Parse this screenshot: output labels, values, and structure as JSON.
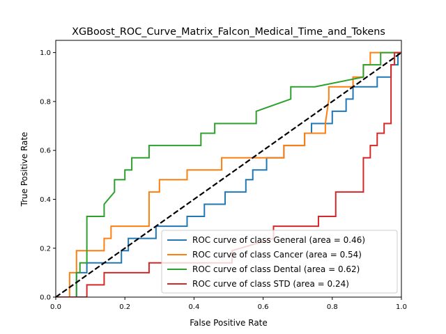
{
  "chart_data": {
    "type": "line",
    "title": "XGBoost_ROC_Curve_Matrix_Falcon_Medical_Time_and_Tokens",
    "xlabel": "False Positive Rate",
    "ylabel": "True Positive Rate",
    "xlim": [
      0.0,
      1.0
    ],
    "ylim": [
      0.0,
      1.05
    ],
    "xticks": [
      "0.0",
      "0.2",
      "0.4",
      "0.6",
      "0.8",
      "1.0"
    ],
    "yticks": [
      "0.0",
      "0.2",
      "0.4",
      "0.6",
      "0.8",
      "1.0"
    ],
    "grid": false,
    "legend_position": "lower-right",
    "series": [
      {
        "name": "ROC curve of class General (area = 0.46)",
        "color": "#1f77b4",
        "x": [
          0.0,
          0.0,
          0.06,
          0.06,
          0.09,
          0.09,
          0.19,
          0.19,
          0.21,
          0.21,
          0.29,
          0.29,
          0.38,
          0.38,
          0.43,
          0.43,
          0.49,
          0.49,
          0.55,
          0.55,
          0.57,
          0.57,
          0.61,
          0.61,
          0.66,
          0.66,
          0.72,
          0.72,
          0.74,
          0.74,
          0.8,
          0.8,
          0.84,
          0.84,
          0.86,
          0.86,
          0.93,
          0.93,
          0.97,
          0.97,
          0.99,
          0.99,
          1.0
        ],
        "y": [
          0.0,
          0.0,
          0.0,
          0.1,
          0.1,
          0.14,
          0.14,
          0.19,
          0.19,
          0.24,
          0.24,
          0.29,
          0.29,
          0.33,
          0.33,
          0.38,
          0.38,
          0.43,
          0.43,
          0.48,
          0.48,
          0.52,
          0.52,
          0.57,
          0.57,
          0.62,
          0.62,
          0.67,
          0.67,
          0.71,
          0.71,
          0.76,
          0.76,
          0.81,
          0.81,
          0.86,
          0.86,
          0.9,
          0.9,
          0.95,
          0.95,
          1.0,
          1.0
        ]
      },
      {
        "name": "ROC curve of class Cancer (area = 0.54)",
        "color": "#ff7f0e",
        "x": [
          0.0,
          0.04,
          0.04,
          0.06,
          0.06,
          0.14,
          0.14,
          0.16,
          0.16,
          0.27,
          0.27,
          0.3,
          0.3,
          0.38,
          0.38,
          0.48,
          0.48,
          0.66,
          0.66,
          0.72,
          0.72,
          0.78,
          0.78,
          0.79,
          0.79,
          0.86,
          0.86,
          0.89,
          0.89,
          0.91,
          0.91,
          0.99,
          0.99,
          1.0
        ],
        "y": [
          0.0,
          0.0,
          0.1,
          0.1,
          0.19,
          0.19,
          0.24,
          0.24,
          0.29,
          0.29,
          0.43,
          0.43,
          0.48,
          0.48,
          0.52,
          0.52,
          0.57,
          0.57,
          0.62,
          0.62,
          0.67,
          0.67,
          0.71,
          0.81,
          0.86,
          0.86,
          0.9,
          0.9,
          0.95,
          0.95,
          1.0,
          1.0,
          1.0,
          1.0
        ]
      },
      {
        "name": "ROC curve of class Dental (area = 0.62)",
        "color": "#2ca02c",
        "x": [
          0.0,
          0.06,
          0.06,
          0.07,
          0.07,
          0.09,
          0.09,
          0.14,
          0.14,
          0.17,
          0.17,
          0.2,
          0.2,
          0.22,
          0.22,
          0.27,
          0.27,
          0.42,
          0.42,
          0.46,
          0.46,
          0.58,
          0.58,
          0.68,
          0.68,
          0.75,
          0.75,
          0.89,
          0.89,
          0.94,
          0.94,
          0.97,
          0.97,
          1.0
        ],
        "y": [
          0.0,
          0.0,
          0.1,
          0.1,
          0.14,
          0.14,
          0.33,
          0.33,
          0.38,
          0.43,
          0.48,
          0.48,
          0.52,
          0.52,
          0.57,
          0.57,
          0.62,
          0.62,
          0.67,
          0.67,
          0.71,
          0.71,
          0.76,
          0.81,
          0.86,
          0.86,
          0.86,
          0.9,
          0.95,
          0.95,
          1.0,
          1.0,
          1.0,
          1.0
        ]
      },
      {
        "name": "ROC curve of class STD (area = 0.24)",
        "color": "#d62728",
        "x": [
          0.0,
          0.09,
          0.09,
          0.14,
          0.14,
          0.27,
          0.27,
          0.51,
          0.51,
          0.63,
          0.63,
          0.76,
          0.76,
          0.81,
          0.81,
          0.89,
          0.89,
          0.91,
          0.91,
          0.93,
          0.93,
          0.95,
          0.95,
          0.97,
          0.97,
          0.98,
          0.98,
          1.0
        ],
        "y": [
          0.0,
          0.0,
          0.05,
          0.05,
          0.1,
          0.1,
          0.14,
          0.14,
          0.19,
          0.24,
          0.29,
          0.29,
          0.33,
          0.33,
          0.43,
          0.43,
          0.57,
          0.57,
          0.62,
          0.62,
          0.67,
          0.67,
          0.71,
          0.71,
          0.95,
          0.95,
          1.0,
          1.0
        ]
      }
    ],
    "reference_line": {
      "x": [
        0.0,
        1.0
      ],
      "y": [
        0.0,
        1.0
      ],
      "color": "#000000",
      "style": "dashed"
    }
  }
}
